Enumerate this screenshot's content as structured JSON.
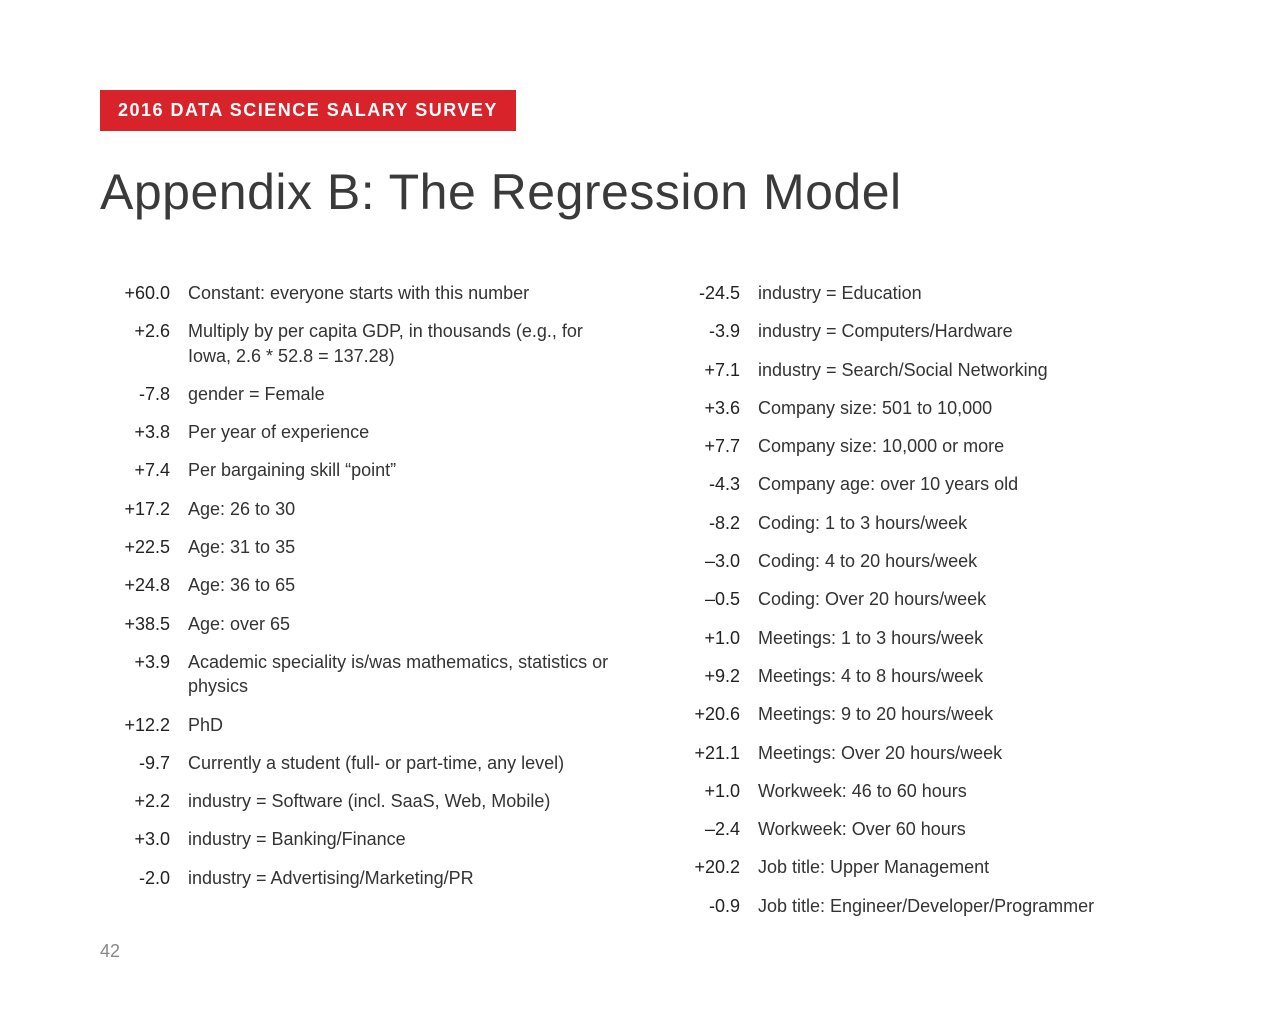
{
  "banner": "2016 DATA SCIENCE SALARY SURVEY",
  "title": "Appendix B: The Regression Model",
  "page_number": "42",
  "colors": {
    "banner_bg": "#d8232a",
    "banner_text": "#ffffff",
    "title_text": "#3a3a3a",
    "body_text": "#333333",
    "page_bg": "#ffffff",
    "page_num": "#888888"
  },
  "typography": {
    "banner_fontsize": 18,
    "banner_letter_spacing": 1.5,
    "title_fontsize": 50,
    "title_weight": 300,
    "body_fontsize": 18
  },
  "left_items": [
    {
      "coef": "+60.0",
      "desc": "Constant: everyone starts with this number"
    },
    {
      "coef": "+2.6",
      "desc": "Multiply by per capita GDP, in thousands (e.g., for Iowa, 2.6 * 52.8 = 137.28)"
    },
    {
      "coef": "-7.8",
      "desc": "gender = Female"
    },
    {
      "coef": "+3.8",
      "desc": "Per year of experience"
    },
    {
      "coef": "+7.4",
      "desc": "Per bargaining skill “point”"
    },
    {
      "coef": "+17.2",
      "desc": "Age: 26 to 30"
    },
    {
      "coef": "+22.5",
      "desc": "Age: 31 to 35"
    },
    {
      "coef": "+24.8",
      "desc": "Age: 36 to 65"
    },
    {
      "coef": "+38.5",
      "desc": "Age: over 65"
    },
    {
      "coef": "+3.9",
      "desc": "Academic speciality is/was mathematics, statistics or physics"
    },
    {
      "coef": "+12.2",
      "desc": "PhD"
    },
    {
      "coef": "-9.7",
      "desc": "Currently a student (full- or part-time, any level)"
    },
    {
      "coef": "+2.2",
      "desc": "industry = Software (incl. SaaS, Web, Mobile)"
    },
    {
      "coef": "+3.0",
      "desc": "industry = Banking/Finance"
    },
    {
      "coef": "-2.0",
      "desc": "industry = Advertising/Marketing/PR"
    }
  ],
  "right_items": [
    {
      "coef": "-24.5",
      "desc": "industry = Education"
    },
    {
      "coef": "-3.9",
      "desc": "industry = Computers/Hardware"
    },
    {
      "coef": "+7.1",
      "desc": "industry = Search/Social Networking"
    },
    {
      "coef": "+3.6",
      "desc": "Company size: 501 to 10,000"
    },
    {
      "coef": "+7.7",
      "desc": "Company size: 10,000 or more"
    },
    {
      "coef": "-4.3",
      "desc": "Company age: over 10 years old"
    },
    {
      "coef": "-8.2",
      "desc": "Coding:  1 to 3 hours/week"
    },
    {
      "coef": "–3.0",
      "desc": "Coding:  4 to 20 hours/week"
    },
    {
      "coef": "–0.5",
      "desc": "Coding:  Over 20 hours/week"
    },
    {
      "coef": "+1.0",
      "desc": "Meetings:  1 to 3 hours/week"
    },
    {
      "coef": "+9.2",
      "desc": "Meetings:  4 to 8 hours/week"
    },
    {
      "coef": "+20.6",
      "desc": "Meetings:  9 to 20 hours/week"
    },
    {
      "coef": "+21.1",
      "desc": "Meetings:  Over 20 hours/week"
    },
    {
      "coef": "+1.0",
      "desc": "Workweek:  46 to 60 hours"
    },
    {
      "coef": "–2.4",
      "desc": "Workweek:  Over 60 hours"
    },
    {
      "coef": "+20.2",
      "desc": "Job title: Upper Management"
    },
    {
      "coef": "-0.9",
      "desc": "Job title: Engineer/Developer/Programmer"
    }
  ]
}
